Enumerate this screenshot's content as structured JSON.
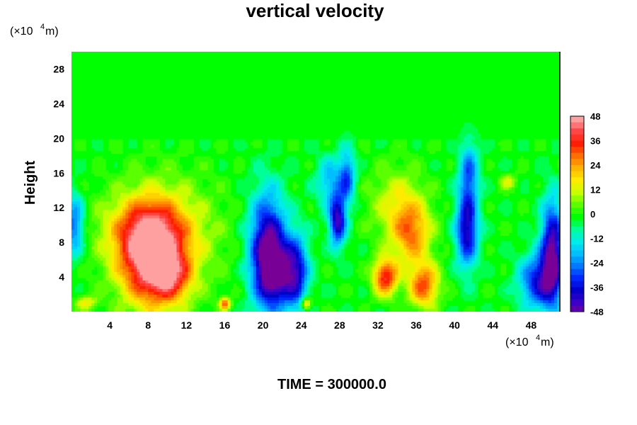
{
  "chart_data": {
    "type": "heatmap",
    "title": "vertical velocity",
    "ylabel": "Height",
    "xlabel": "",
    "x_unit": {
      "prefix": "(×10",
      "exponent": "4",
      "suffix": " m)"
    },
    "y_unit": {
      "prefix": "(×10",
      "exponent": "4",
      "suffix": " m)"
    },
    "xlim": [
      0,
      51
    ],
    "ylim": [
      0,
      30
    ],
    "x_ticks": [
      "4",
      "8",
      "12",
      "16",
      "20",
      "24",
      "28",
      "32",
      "36",
      "40",
      "44",
      "48"
    ],
    "y_ticks": [
      "4",
      "8",
      "12",
      "16",
      "20",
      "24",
      "28"
    ],
    "colorbar": {
      "min": -48,
      "max": 48,
      "ticks": [
        "48",
        "36",
        "24",
        "12",
        "0",
        "-12",
        "-24",
        "-36",
        "-48"
      ]
    },
    "features": [
      {
        "x": 8.3,
        "y": 6.2,
        "amp": 46,
        "sx": 2.2,
        "sy": 3.8
      },
      {
        "x": 9.6,
        "y": 8.8,
        "amp": 16,
        "sx": 4.0,
        "sy": 4.5
      },
      {
        "x": 7.5,
        "y": 9.5,
        "amp": 14,
        "sx": 3.0,
        "sy": 2.5
      },
      {
        "x": 10.5,
        "y": 4.0,
        "amp": 20,
        "sx": 1.5,
        "sy": 2.0
      },
      {
        "x": 20.5,
        "y": 7.0,
        "amp": -48,
        "sx": 1.3,
        "sy": 4.5
      },
      {
        "x": 21.5,
        "y": 4.5,
        "amp": -30,
        "sx": 1.2,
        "sy": 2.5
      },
      {
        "x": 23.5,
        "y": 4.5,
        "amp": -34,
        "sx": 0.9,
        "sy": 3.0
      },
      {
        "x": 27.8,
        "y": 10.5,
        "amp": -42,
        "sx": 0.6,
        "sy": 2.0
      },
      {
        "x": 28.8,
        "y": 15.5,
        "amp": -26,
        "sx": 0.6,
        "sy": 2.2
      },
      {
        "x": 27.0,
        "y": 15.0,
        "amp": -18,
        "sx": 1.0,
        "sy": 2.0
      },
      {
        "x": 32.8,
        "y": 4.0,
        "amp": 38,
        "sx": 0.9,
        "sy": 1.5
      },
      {
        "x": 35.5,
        "y": 9.0,
        "amp": 26,
        "sx": 1.4,
        "sy": 2.5
      },
      {
        "x": 36.8,
        "y": 3.0,
        "amp": 32,
        "sx": 1.1,
        "sy": 1.8
      },
      {
        "x": 41.3,
        "y": 9.5,
        "amp": -40,
        "sx": 0.8,
        "sy": 3.0
      },
      {
        "x": 41.5,
        "y": 16.0,
        "amp": -24,
        "sx": 0.7,
        "sy": 2.5
      },
      {
        "x": 48.8,
        "y": 3.5,
        "amp": -34,
        "sx": 1.4,
        "sy": 2.2
      },
      {
        "x": 50.2,
        "y": 7.0,
        "amp": -46,
        "sx": 0.8,
        "sy": 4.0
      },
      {
        "x": 0.3,
        "y": 10.0,
        "amp": -26,
        "sx": 0.7,
        "sy": 2.5
      },
      {
        "x": 16.0,
        "y": 0.9,
        "amp": 30,
        "sx": 0.4,
        "sy": 0.5
      },
      {
        "x": 24.5,
        "y": 0.9,
        "amp": 26,
        "sx": 0.4,
        "sy": 0.5
      },
      {
        "x": 1.5,
        "y": 1.0,
        "amp": 16,
        "sx": 0.8,
        "sy": 0.6
      },
      {
        "x": 45.6,
        "y": 15.0,
        "amp": 14,
        "sx": 0.6,
        "sy": 0.6
      },
      {
        "x": 34.0,
        "y": 12.5,
        "amp": 14,
        "sx": 2.0,
        "sy": 3.0
      }
    ],
    "footer": "TIME = 300000.0"
  }
}
